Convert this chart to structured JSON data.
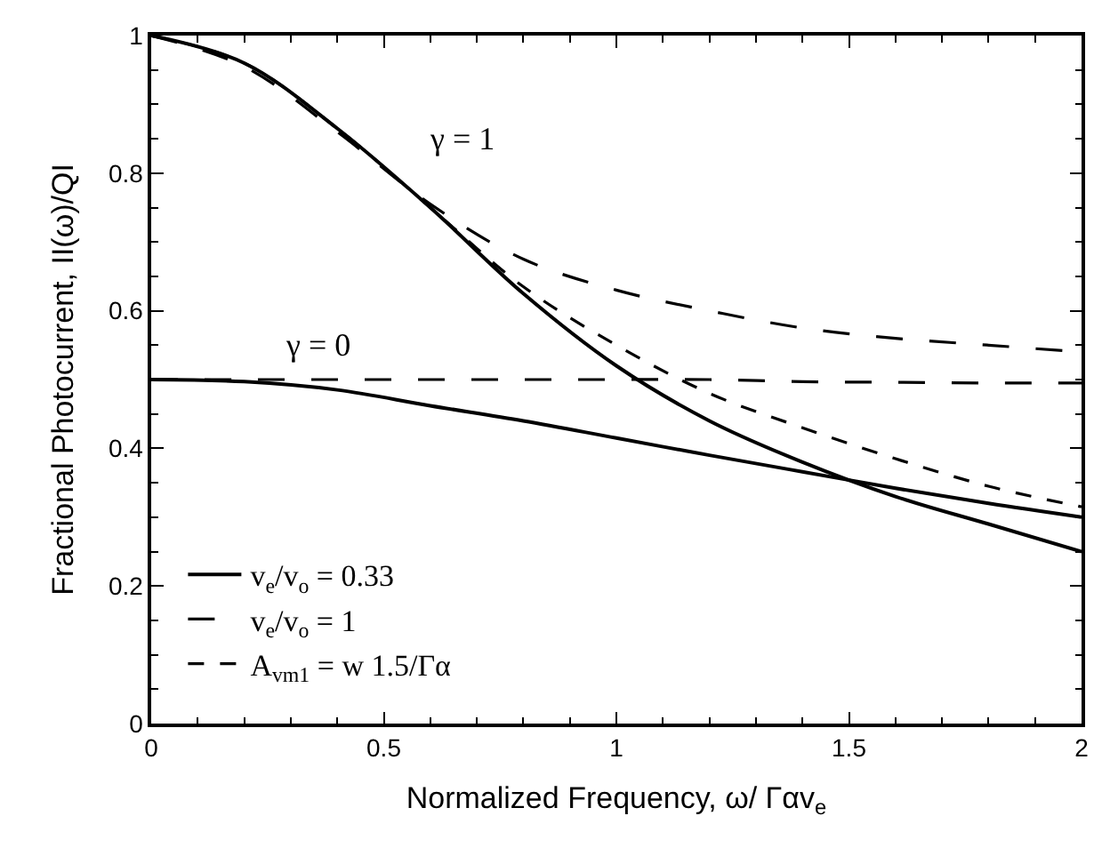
{
  "chart_data": {
    "type": "line",
    "xlabel": "Normalized Frequency, ω/ Γαv$_{e}$",
    "ylabel": "Fractional Photocurrent, II(ω)/QI",
    "x": [
      0,
      0.2,
      0.4,
      0.6,
      0.8,
      1.0,
      1.2,
      1.4,
      1.6,
      1.8,
      2.0
    ],
    "series": [
      {
        "name": "v$_{e}$/v$_{o}$ = 0.33",
        "color": "#000000",
        "line_style": "solid",
        "values": [
          1,
          0.96,
          0.865,
          0.75,
          0.625,
          0.52,
          0.44,
          0.38,
          0.33,
          0.29,
          0.25
        ]
      },
      {
        "color": "#000000",
        "line_style": "solid",
        "values": [
          0.5,
          0.497,
          0.485,
          0.462,
          0.44,
          0.415,
          0.39,
          0.366,
          0.342,
          0.32,
          0.3
        ]
      },
      {
        "name": "v$_{e}$/v$_{o}$ = 1",
        "color": "#000000",
        "line_style": "dashed",
        "values": [
          1,
          0.955,
          0.86,
          0.755,
          0.675,
          0.63,
          0.6,
          0.575,
          0.56,
          0.55,
          0.54
        ]
      },
      {
        "color": "#000000",
        "line_style": "dashed",
        "values": [
          0.5,
          0.5,
          0.5,
          0.5,
          0.5,
          0.5,
          0.5,
          0.497,
          0.496,
          0.495,
          0.495
        ]
      },
      {
        "name": "A$_{vm1}$ = w 1.5/Γα",
        "color": "#000000",
        "line_style": "dotted",
        "values": [
          1,
          0.96,
          0.865,
          0.75,
          0.635,
          0.55,
          0.48,
          0.43,
          0.385,
          0.345,
          0.315
        ]
      }
    ],
    "annotations": [
      "γ = 1",
      "γ = 0"
    ],
    "xlim": [
      0,
      2
    ],
    "xticks": [
      0,
      0.5,
      1,
      1.5,
      2
    ],
    "ylim": [
      0,
      1
    ],
    "yticks": [
      0,
      0.2,
      0.4,
      0.6,
      0.8,
      1
    ],
    "grid": false,
    "legend": "bottom left",
    "marker": "none"
  }
}
